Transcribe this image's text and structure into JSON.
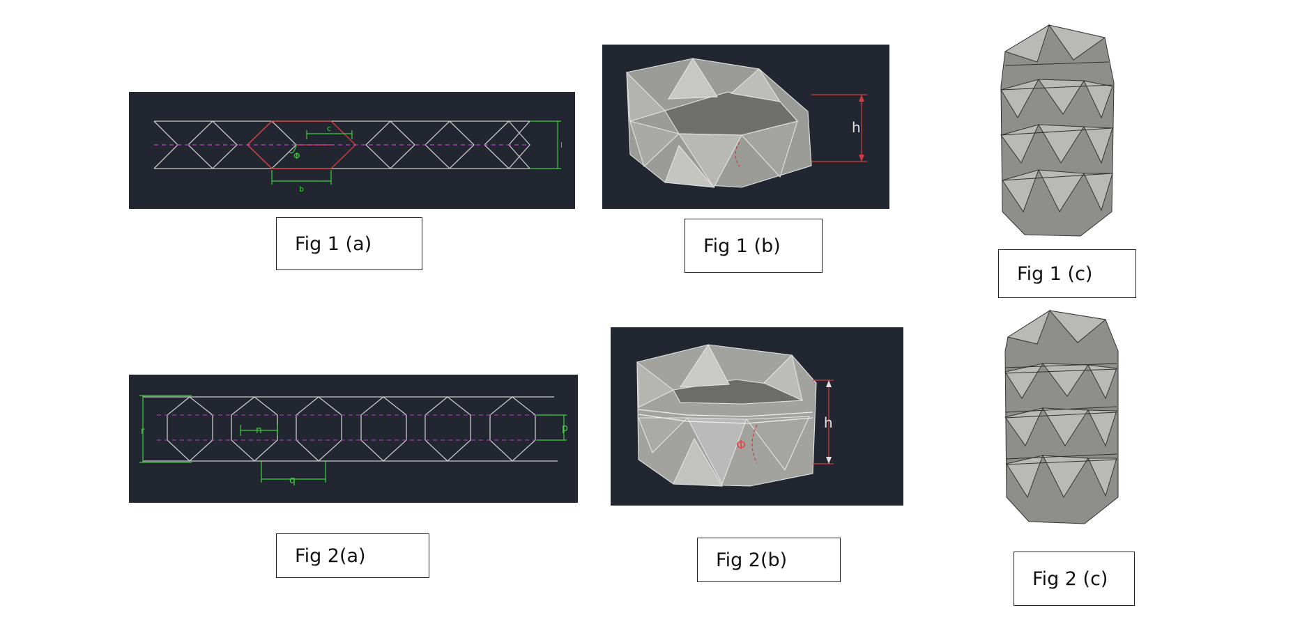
{
  "figures": {
    "fig1a": {
      "caption": "Fig 1 (a)",
      "labels": {
        "c": "c",
        "phi": "Φ",
        "b": "b",
        "l": "l"
      }
    },
    "fig1b": {
      "caption": "Fig 1 (b)",
      "labels": {
        "h": "h"
      }
    },
    "fig1c": {
      "caption": "Fig 1 (c)"
    },
    "fig2a": {
      "caption": "Fig 2(a)",
      "labels": {
        "r": "r",
        "n": "n",
        "q": "q",
        "p": "p"
      }
    },
    "fig2b": {
      "caption": "Fig 2(b)",
      "labels": {
        "h": "h",
        "phi": "Φ"
      }
    },
    "fig2c": {
      "caption": "Fig 2 (c)"
    }
  },
  "colors": {
    "panel_bg": "#212630",
    "dimension_green": "#3fcf3f",
    "fold_red": "#d23c3c",
    "crease_magenta": "#c040c0",
    "model_gray": "#8e8e8a"
  }
}
